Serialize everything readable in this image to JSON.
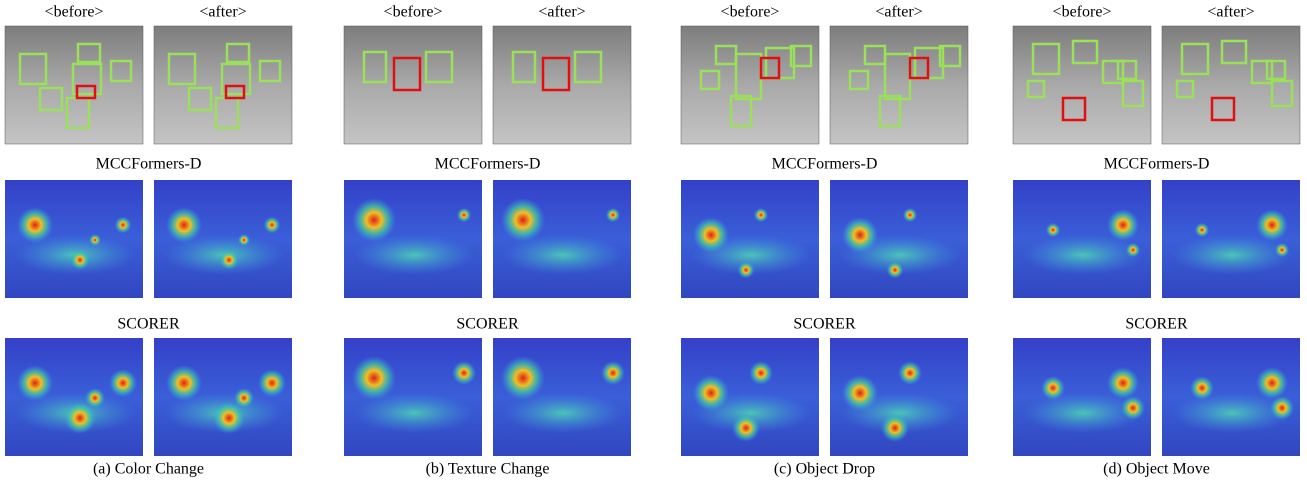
{
  "panels": [
    {
      "before": "<before>",
      "after": "<after>",
      "method_1": "MCCFormers-D",
      "method_2": "SCORER",
      "caption": "(a) Color Change"
    },
    {
      "before": "<before>",
      "after": "<after>",
      "method_1": "MCCFormers-D",
      "method_2": "SCORER",
      "caption": "(b) Texture Change"
    },
    {
      "before": "<before>",
      "after": "<after>",
      "method_1": "MCCFormers-D",
      "method_2": "SCORER",
      "caption": "(c) Object Drop"
    },
    {
      "before": "<before>",
      "after": "<after>",
      "method_1": "MCCFormers-D",
      "method_2": "SCORER",
      "caption": "(d) Object Move"
    }
  ]
}
